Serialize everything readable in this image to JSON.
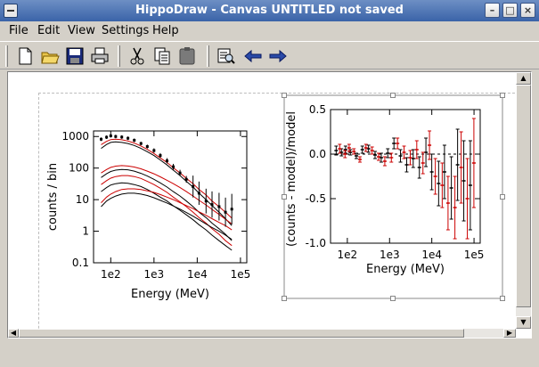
{
  "window": {
    "title": "HippoDraw - Canvas UNTITLED   not saved",
    "controls": [
      "–",
      "□",
      "×"
    ]
  },
  "menubar": {
    "items": [
      {
        "label": "File"
      },
      {
        "label": "Edit"
      },
      {
        "label": "View"
      },
      {
        "label": "Settings"
      },
      {
        "label": "Help"
      }
    ]
  },
  "toolbar": {
    "icons": [
      "new-file-icon",
      "open-folder-icon",
      "save-icon",
      "print-icon",
      "cut-icon",
      "copy-icon",
      "paste-icon",
      "inspect-icon",
      "back-arrow-icon",
      "forward-arrow-icon"
    ]
  },
  "plots": {
    "left": {
      "xlabel": "Energy (MeV)",
      "ylabel": "counts / bin",
      "x_ticks": [
        "1e2",
        "1e3",
        "1e4",
        "1e5"
      ],
      "y_ticks": [
        "1000",
        "100",
        "10",
        "1",
        "0.1"
      ]
    },
    "right": {
      "xlabel": "Energy (MeV)",
      "ylabel": "(counts - model)/model",
      "x_ticks": [
        "1e2",
        "1e3",
        "1e4",
        "1e5"
      ],
      "y_ticks": [
        "0.5",
        "0.0",
        "-0.5",
        "-1.0"
      ]
    }
  },
  "chart_data": [
    {
      "type": "line",
      "title": "",
      "xlabel": "Energy (MeV)",
      "ylabel": "counts / bin",
      "x_scale": "log",
      "y_scale": "log",
      "xlim": [
        40,
        140000
      ],
      "ylim": [
        0.1,
        1500
      ],
      "x": [
        60,
        80,
        100,
        130,
        180,
        250,
        350,
        500,
        700,
        1000,
        1400,
        2000,
        2800,
        4000,
        5600,
        8000,
        11000,
        16000,
        22000,
        32000,
        45000,
        63000
      ],
      "series": [
        {
          "name": "",
          "color": "#000000",
          "kind": "points",
          "values": [
            820,
            950,
            1050,
            1000,
            960,
            880,
            760,
            600,
            480,
            360,
            250,
            170,
            110,
            70,
            44,
            26,
            16,
            9,
            7,
            6,
            4,
            5
          ]
        },
        {
          "name": "",
          "color": "#cc0000",
          "kind": "model",
          "values": [
            550,
            700,
            800,
            820,
            790,
            720,
            620,
            500,
            390,
            290,
            210,
            150,
            102,
            70,
            47,
            32,
            21,
            14,
            9,
            6,
            4,
            2.6
          ]
        },
        {
          "name": "",
          "color": "#000000",
          "kind": "model",
          "values": [
            420,
            560,
            650,
            680,
            650,
            600,
            520,
            420,
            330,
            250,
            180,
            125,
            86,
            58,
            38,
            25,
            16,
            10,
            6.5,
            4,
            2.5,
            1.5
          ]
        },
        {
          "name": "",
          "color": "#cc0000",
          "kind": "model",
          "values": [
            70,
            90,
            105,
            115,
            120,
            116,
            108,
            95,
            80,
            66,
            53,
            41,
            32,
            24,
            18,
            13,
            9.5,
            6.8,
            4.9,
            3.4,
            2.4,
            1.7
          ]
        },
        {
          "name": "",
          "color": "#000000",
          "kind": "model",
          "values": [
            50,
            66,
            78,
            86,
            90,
            88,
            80,
            68,
            56,
            44,
            34,
            25,
            18,
            13,
            9,
            6,
            4,
            2.7,
            1.8,
            1.2,
            0.8,
            0.5
          ]
        },
        {
          "name": "",
          "color": "#cc0000",
          "kind": "model",
          "values": [
            30,
            40,
            48,
            54,
            58,
            58,
            54,
            47,
            38,
            30,
            23,
            17,
            12,
            8.5,
            6,
            4,
            2.7,
            1.8,
            1.2,
            0.8,
            0.5,
            0.35
          ]
        },
        {
          "name": "",
          "color": "#000000",
          "kind": "model",
          "values": [
            18,
            24,
            29,
            32,
            34,
            33,
            30,
            26,
            21,
            16,
            12,
            9,
            6.4,
            4.6,
            3.3,
            2.3,
            1.6,
            1.1,
            0.75,
            0.5,
            0.35,
            0.25
          ]
        },
        {
          "name": "",
          "color": "#cc0000",
          "kind": "model",
          "values": [
            8,
            12,
            15,
            18,
            21,
            22,
            22,
            21,
            19,
            17,
            14.5,
            12,
            10,
            8,
            6.5,
            5.2,
            4.1,
            3.2,
            2.5,
            1.9,
            1.5,
            1.1
          ]
        },
        {
          "name": "",
          "color": "#000000",
          "kind": "model",
          "values": [
            6,
            9,
            11,
            13,
            15,
            16,
            16,
            15,
            13.5,
            11.5,
            9.5,
            7.8,
            6.3,
            5,
            3.9,
            3,
            2.3,
            1.7,
            1.3,
            1,
            0.75,
            0.55
          ]
        }
      ]
    },
    {
      "type": "scatter",
      "title": "",
      "xlabel": "Energy (MeV)",
      "ylabel": "(counts - model)/model",
      "x_scale": "log",
      "xlim": [
        40,
        140000
      ],
      "ylim": [
        -1.0,
        0.5
      ],
      "reference_line": 0.0,
      "x": [
        60,
        80,
        100,
        130,
        180,
        250,
        350,
        500,
        700,
        1000,
        1400,
        2000,
        2800,
        4000,
        5600,
        8000,
        11000,
        16000,
        22000,
        32000,
        45000,
        63000,
        90000
      ],
      "series": [
        {
          "name": "",
          "color": "#000000",
          "values": [
            0.04,
            0.02,
            0.05,
            0.02,
            -0.02,
            0.05,
            0.06,
            -0.01,
            -0.04,
            0.01,
            0.12,
            -0.02,
            -0.12,
            -0.05,
            -0.15,
            0.02,
            -0.2,
            -0.33,
            -0.2,
            -0.38,
            -0.12,
            -0.3,
            -0.35
          ],
          "errors": [
            0.05,
            0.04,
            0.04,
            0.03,
            0.03,
            0.04,
            0.04,
            0.04,
            0.05,
            0.05,
            0.06,
            0.07,
            0.08,
            0.1,
            0.12,
            0.16,
            0.2,
            0.25,
            0.3,
            0.35,
            0.4,
            0.45,
            0.5
          ]
        },
        {
          "name": "",
          "color": "#cc0000",
          "values": [
            0.06,
            0.0,
            0.07,
            0.03,
            -0.06,
            0.07,
            0.04,
            -0.03,
            -0.08,
            -0.04,
            0.12,
            0.02,
            -0.04,
            0.05,
            -0.1,
            0.1,
            -0.25,
            -0.35,
            -0.55,
            -0.6,
            -0.15,
            -0.5,
            -0.1
          ],
          "errors": [
            0.05,
            0.04,
            0.04,
            0.03,
            0.03,
            0.04,
            0.04,
            0.04,
            0.05,
            0.05,
            0.06,
            0.07,
            0.08,
            0.1,
            0.12,
            0.16,
            0.2,
            0.25,
            0.3,
            0.35,
            0.4,
            0.45,
            0.5
          ]
        }
      ]
    }
  ]
}
